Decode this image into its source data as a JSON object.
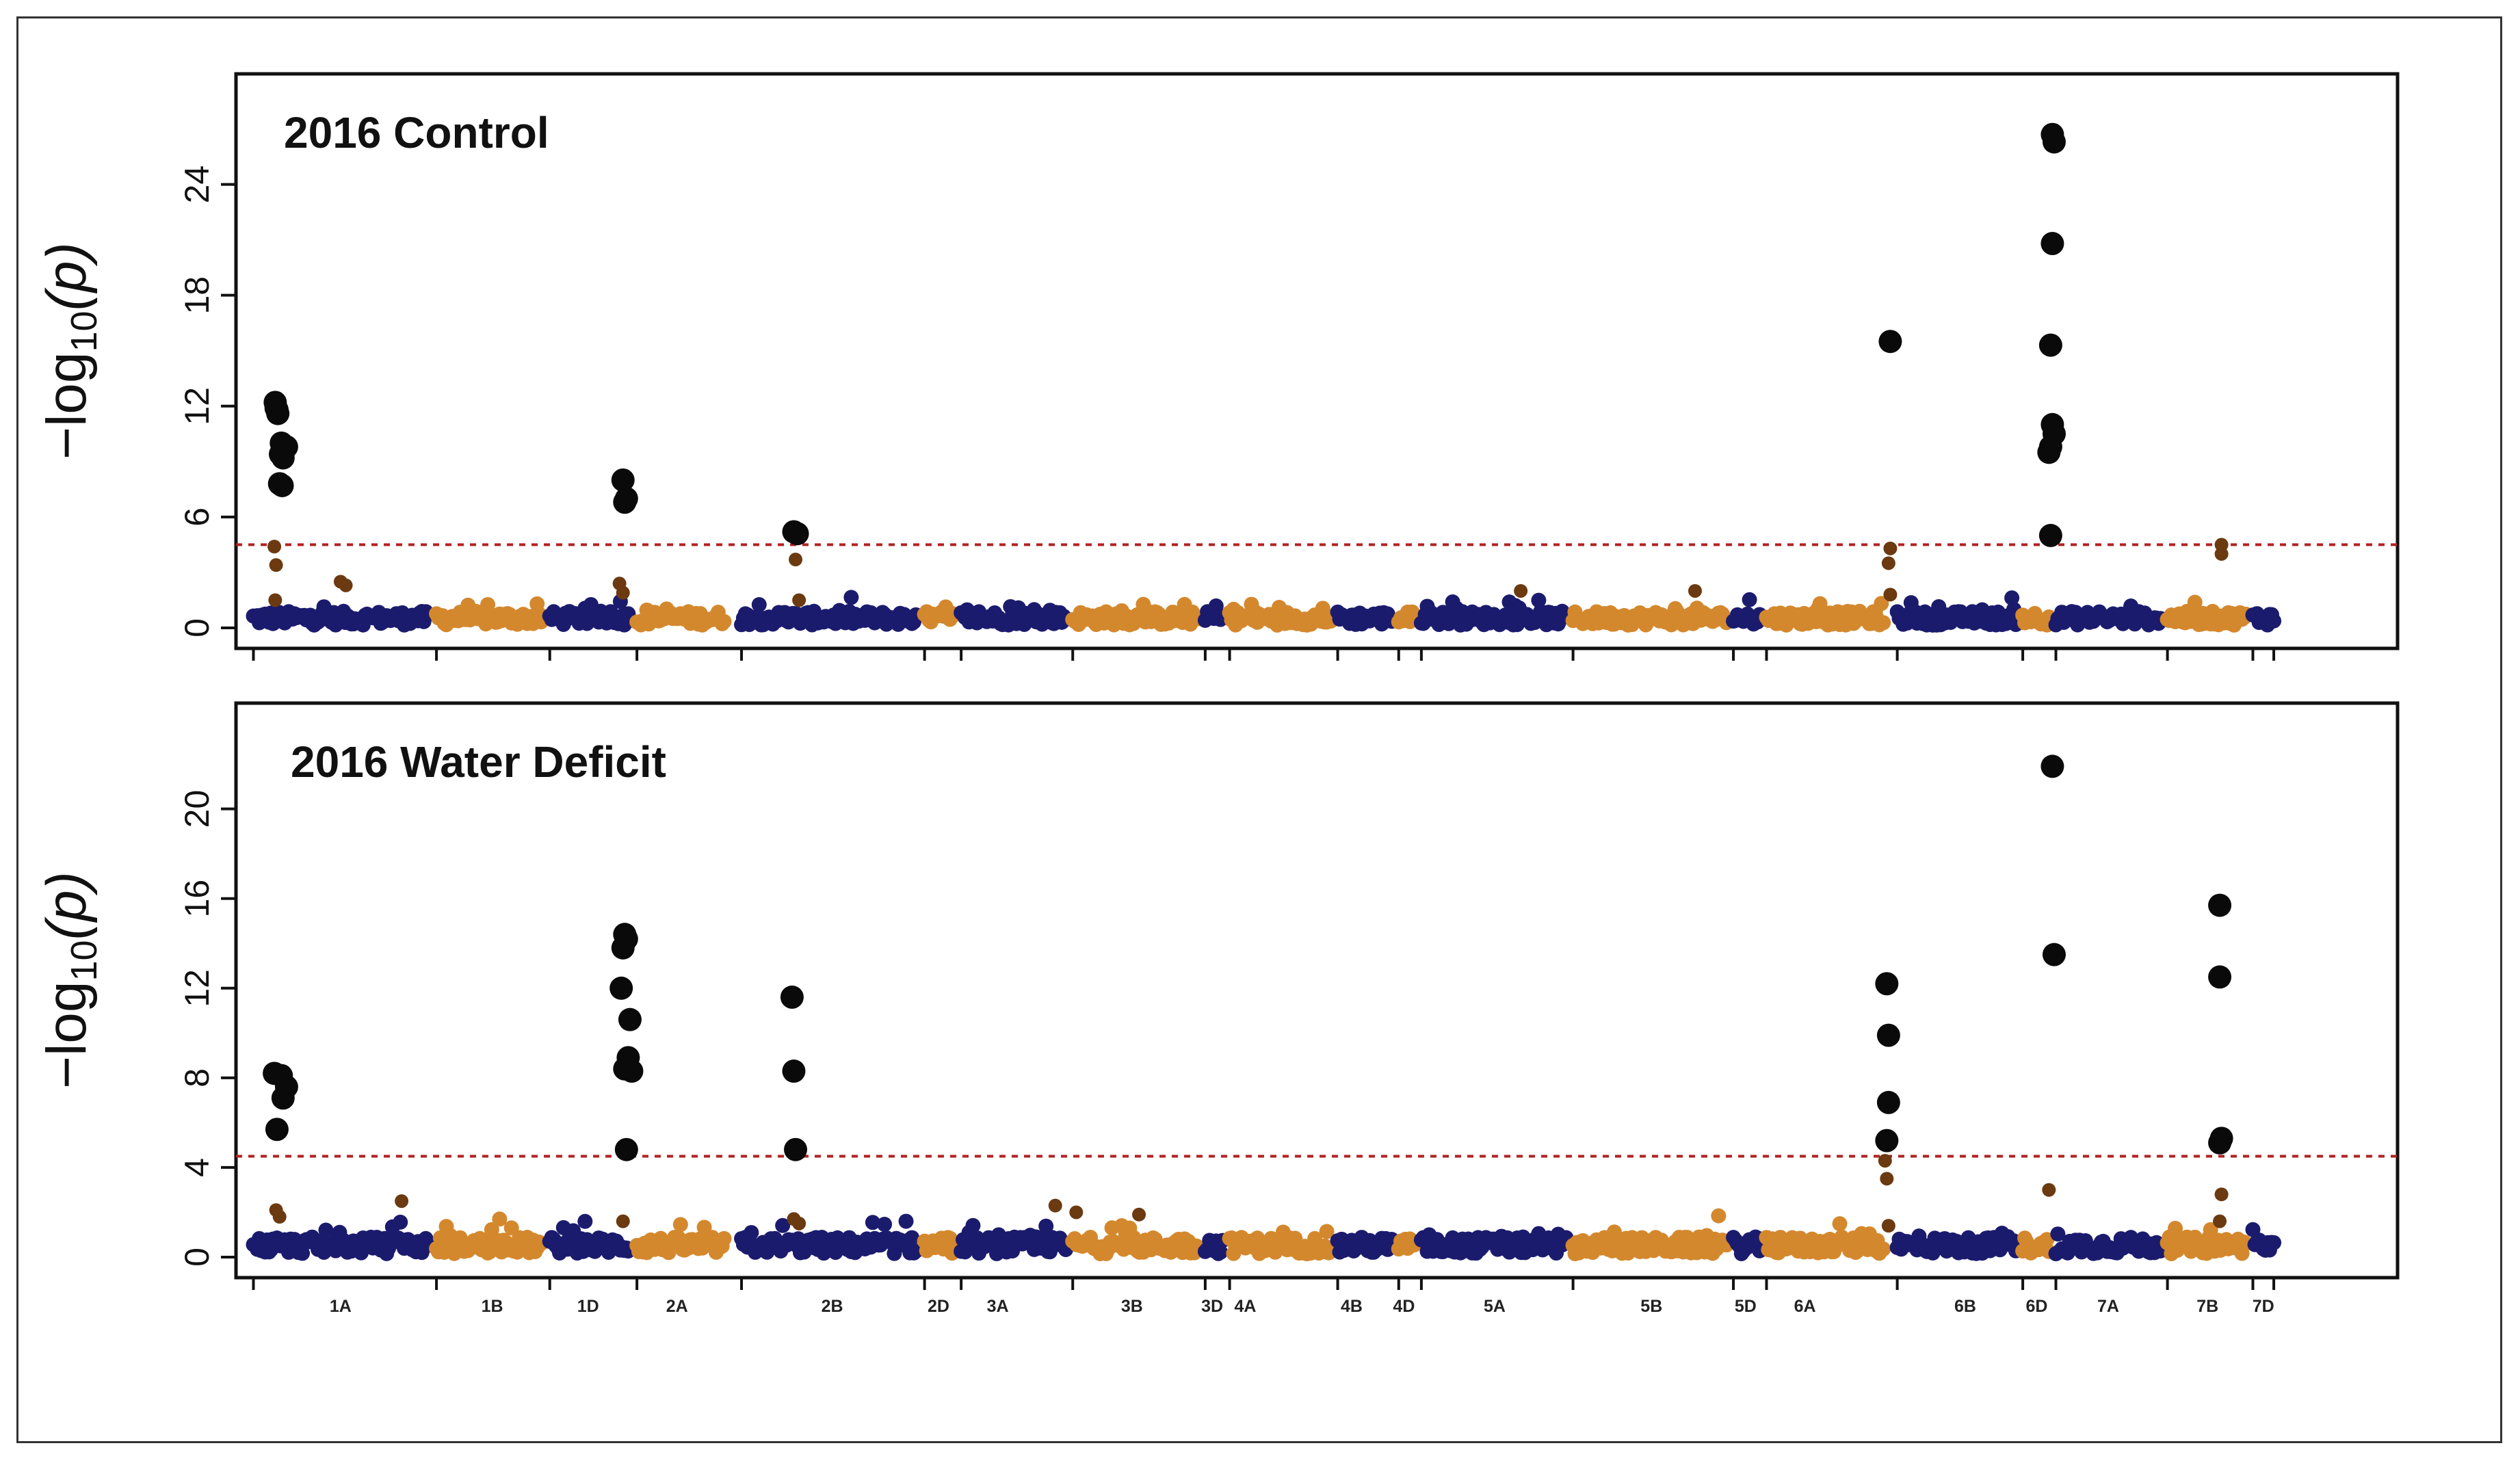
{
  "colors": {
    "blue": "#1b1b6e",
    "orange": "#d4882d",
    "sig": "#0a0a0a",
    "threshold": "#b22222"
  },
  "chart_data": [
    {
      "type": "scatter",
      "subtype": "manhattan",
      "title": "2016 Control",
      "ylabel": "−log10(p)",
      "ylabel_main": "−log",
      "ylabel_sub": "10",
      "ylabel_paren": "(p)",
      "ylim": [
        0,
        28.5
      ],
      "yticks": [
        0,
        6,
        12,
        18,
        24
      ],
      "threshold": 4.5,
      "significant": [
        [
          1.25,
          12.2
        ],
        [
          1.35,
          11.8
        ],
        [
          1.4,
          11.6
        ],
        [
          1.3,
          11.9
        ],
        [
          1.6,
          10.0
        ],
        [
          1.75,
          9.6
        ],
        [
          1.9,
          9.8
        ],
        [
          1.7,
          9.2
        ],
        [
          1.55,
          9.4
        ],
        [
          1.5,
          7.8
        ],
        [
          1.65,
          7.7
        ],
        [
          21.2,
          8.0
        ],
        [
          21.4,
          7.0
        ],
        [
          21.3,
          6.8
        ],
        [
          31.0,
          5.2
        ],
        [
          31.2,
          5.1
        ],
        [
          93.9,
          15.5
        ],
        [
          103.2,
          26.7
        ],
        [
          103.3,
          26.3
        ],
        [
          103.2,
          20.8
        ],
        [
          103.1,
          15.3
        ],
        [
          103.2,
          11.0
        ],
        [
          103.3,
          10.5
        ],
        [
          103.1,
          9.8
        ],
        [
          103.0,
          9.5
        ],
        [
          103.1,
          5.0
        ]
      ],
      "medium": [
        [
          1.2,
          4.4
        ],
        [
          1.3,
          3.4
        ],
        [
          1.25,
          1.5
        ],
        [
          5.0,
          2.5
        ],
        [
          5.3,
          2.3
        ],
        [
          21.0,
          2.4
        ],
        [
          21.2,
          1.9
        ],
        [
          31.1,
          3.7
        ],
        [
          31.3,
          1.5
        ],
        [
          72.7,
          2.0
        ],
        [
          82.7,
          2.0
        ],
        [
          93.9,
          4.3
        ],
        [
          93.8,
          3.5
        ],
        [
          93.9,
          1.8
        ],
        [
          112.9,
          4.5
        ],
        [
          112.9,
          4.0
        ]
      ],
      "background_peak": 1.4
    },
    {
      "type": "scatter",
      "subtype": "manhattan",
      "title": "2016 Water Deficit",
      "ylabel": "−log10(p)",
      "ylabel_main": "−log",
      "ylabel_sub": "10",
      "ylabel_paren": "(p)",
      "ylim": [
        0,
        23.5
      ],
      "yticks": [
        0,
        4,
        8,
        12,
        16,
        20
      ],
      "threshold": 4.5,
      "significant": [
        [
          1.2,
          8.2
        ],
        [
          1.6,
          8.1
        ],
        [
          1.9,
          7.6
        ],
        [
          1.7,
          7.1
        ],
        [
          1.35,
          5.7
        ],
        [
          21.3,
          14.4
        ],
        [
          21.4,
          14.2
        ],
        [
          21.2,
          13.8
        ],
        [
          21.1,
          12.0
        ],
        [
          21.6,
          10.6
        ],
        [
          21.5,
          8.9
        ],
        [
          21.3,
          8.4
        ],
        [
          21.7,
          8.3
        ],
        [
          21.4,
          4.8
        ],
        [
          30.9,
          11.6
        ],
        [
          31.0,
          8.3
        ],
        [
          31.1,
          4.8
        ],
        [
          93.7,
          12.2
        ],
        [
          93.8,
          9.9
        ],
        [
          93.8,
          6.9
        ],
        [
          93.7,
          5.2
        ],
        [
          103.2,
          21.9
        ],
        [
          103.3,
          13.5
        ],
        [
          112.8,
          15.7
        ],
        [
          112.8,
          12.5
        ],
        [
          112.9,
          5.3
        ],
        [
          112.8,
          5.1
        ]
      ],
      "medium": [
        [
          1.3,
          2.1
        ],
        [
          1.5,
          1.8
        ],
        [
          8.5,
          2.5
        ],
        [
          21.2,
          1.6
        ],
        [
          31.0,
          1.7
        ],
        [
          31.3,
          1.5
        ],
        [
          46.0,
          2.3
        ],
        [
          47.2,
          2.0
        ],
        [
          50.8,
          1.9
        ],
        [
          93.6,
          4.3
        ],
        [
          93.7,
          3.5
        ],
        [
          93.8,
          1.4
        ],
        [
          103.0,
          3.0
        ],
        [
          112.9,
          2.8
        ],
        [
          112.8,
          1.6
        ]
      ],
      "background_peak": 1.6
    }
  ],
  "x_axis": {
    "xlim": [
      -1,
      123
    ],
    "chromosomes": [
      {
        "name": "1A",
        "start": 0,
        "end": 10.0,
        "color": "blue"
      },
      {
        "name": "1B",
        "start": 10.5,
        "end": 16.5,
        "color": "orange"
      },
      {
        "name": "1D",
        "start": 17.0,
        "end": 21.5,
        "color": "blue"
      },
      {
        "name": "2A",
        "start": 22.0,
        "end": 27.0,
        "color": "orange"
      },
      {
        "name": "2B",
        "start": 28.0,
        "end": 38.0,
        "color": "blue"
      },
      {
        "name": "2D",
        "start": 38.5,
        "end": 40.2,
        "color": "orange"
      },
      {
        "name": "3A",
        "start": 40.6,
        "end": 46.6,
        "color": "blue"
      },
      {
        "name": "3B",
        "start": 47.0,
        "end": 54.2,
        "color": "orange"
      },
      {
        "name": "3D",
        "start": 54.6,
        "end": 55.6,
        "color": "blue"
      },
      {
        "name": "4A",
        "start": 56.0,
        "end": 61.8,
        "color": "orange"
      },
      {
        "name": "4B",
        "start": 62.2,
        "end": 65.3,
        "color": "blue"
      },
      {
        "name": "4D",
        "start": 65.7,
        "end": 66.6,
        "color": "orange"
      },
      {
        "name": "5A",
        "start": 67.0,
        "end": 75.3,
        "color": "blue"
      },
      {
        "name": "5B",
        "start": 75.7,
        "end": 84.5,
        "color": "orange"
      },
      {
        "name": "5D",
        "start": 84.9,
        "end": 86.4,
        "color": "blue"
      },
      {
        "name": "6A",
        "start": 86.8,
        "end": 93.5,
        "color": "orange"
      },
      {
        "name": "6B",
        "start": 94.3,
        "end": 101.1,
        "color": "blue"
      },
      {
        "name": "6D",
        "start": 101.5,
        "end": 103.0,
        "color": "orange"
      },
      {
        "name": "7A",
        "start": 103.4,
        "end": 109.4,
        "color": "blue"
      },
      {
        "name": "7B",
        "start": 109.8,
        "end": 114.3,
        "color": "orange"
      },
      {
        "name": "7D",
        "start": 114.7,
        "end": 115.9,
        "color": "blue"
      }
    ],
    "label_positions": [
      5,
      13.7,
      19.2,
      24.3,
      33.2,
      39.3,
      42.7,
      50.4,
      55.0,
      56.9,
      63.0,
      66.0,
      71.2,
      80.2,
      85.6,
      89.0,
      98.2,
      102.3,
      106.4,
      112.1,
      115.3
    ]
  }
}
